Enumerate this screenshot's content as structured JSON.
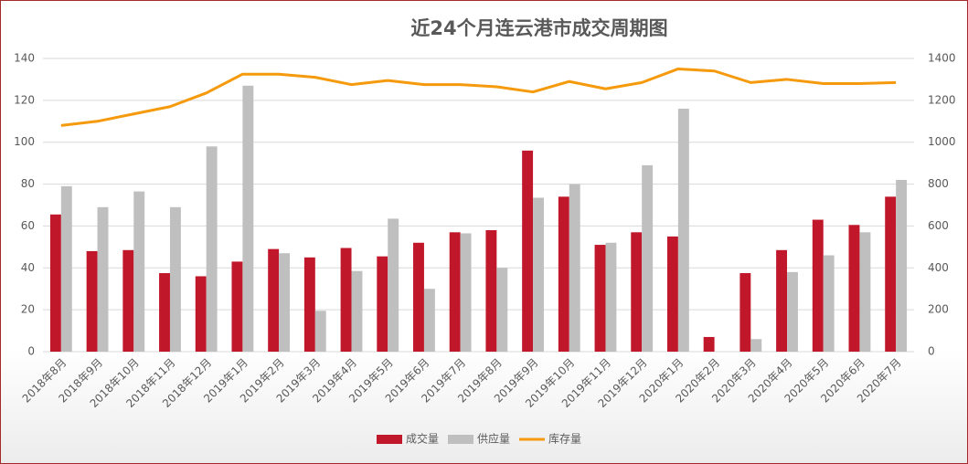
{
  "chart_data": {
    "type": "bar-line",
    "title": "近24个月连云港市成交周期图",
    "categories": [
      "2018年8月",
      "2018年9月",
      "2018年10月",
      "2018年11月",
      "2018年12月",
      "2019年1月",
      "2019年2月",
      "2019年3月",
      "2019年4月",
      "2019年5月",
      "2019年6月",
      "2019年7月",
      "2019年8月",
      "2019年9月",
      "2019年10月",
      "2019年11月",
      "2019年12月",
      "2020年1月",
      "2020年2月",
      "2020年3月",
      "2020年4月",
      "2020年5月",
      "2020年6月",
      "2020年7月"
    ],
    "series": [
      {
        "name": "成交量",
        "color": "#c0182a",
        "kind": "bar",
        "values": [
          65.5,
          48,
          48.5,
          37.5,
          36,
          43,
          49,
          45,
          49.5,
          45.5,
          52,
          57,
          58,
          96,
          74,
          51,
          57,
          55,
          7,
          37.5,
          48.5,
          63,
          60.5,
          74
        ]
      },
      {
        "name": "供应量",
        "color": "#bfbfbf",
        "kind": "bar",
        "values": [
          79,
          69,
          76.5,
          69,
          98,
          127,
          47,
          19.5,
          38.5,
          63.5,
          30,
          56.5,
          40,
          73.5,
          80,
          52,
          89,
          116,
          0,
          6,
          38,
          46,
          57,
          82
        ]
      },
      {
        "name": "库存量",
        "color": "#f59a0c",
        "kind": "line",
        "axis": "y2",
        "values": [
          1080,
          1100,
          1135,
          1170,
          1235,
          1325,
          1325,
          1310,
          1275,
          1295,
          1275,
          1275,
          1265,
          1240,
          1290,
          1255,
          1285,
          1350,
          1340,
          1285,
          1300,
          1280,
          1280,
          1285
        ]
      }
    ],
    "ylim": [
      0,
      140
    ],
    "yticks": [
      0,
      20,
      40,
      60,
      80,
      100,
      120,
      140
    ],
    "y2lim": [
      0,
      1400
    ],
    "y2ticks": [
      0,
      200,
      400,
      600,
      800,
      1000,
      1200,
      1400
    ],
    "grid": true,
    "legend": "bottom"
  }
}
